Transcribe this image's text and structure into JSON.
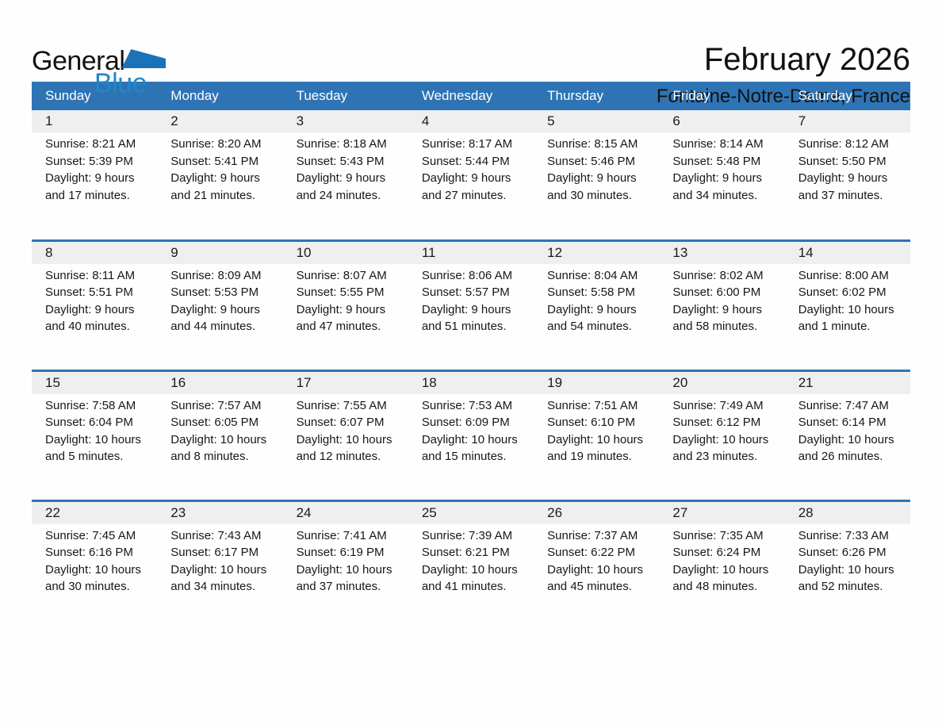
{
  "logo": {
    "part1": "General",
    "part2": "Blue"
  },
  "header": {
    "month_title": "February 2026",
    "location": "Fontaine-Notre-Dame, France"
  },
  "colors": {
    "header_bg": "#2E74B5",
    "week_divider": "#2E74B5",
    "day_band_bg": "#EFEFEF",
    "logo_blue": "#1F87C9",
    "logo_triangle": "#1A72B8",
    "header_text": "#FFFFFF",
    "body_text": "#171717"
  },
  "calendar": {
    "day_names": [
      "Sunday",
      "Monday",
      "Tuesday",
      "Wednesday",
      "Thursday",
      "Friday",
      "Saturday"
    ],
    "weeks": [
      [
        {
          "day": "1",
          "sunrise": "Sunrise: 8:21 AM",
          "sunset": "Sunset: 5:39 PM",
          "daylight": "Daylight: 9 hours and 17 minutes."
        },
        {
          "day": "2",
          "sunrise": "Sunrise: 8:20 AM",
          "sunset": "Sunset: 5:41 PM",
          "daylight": "Daylight: 9 hours and 21 minutes."
        },
        {
          "day": "3",
          "sunrise": "Sunrise: 8:18 AM",
          "sunset": "Sunset: 5:43 PM",
          "daylight": "Daylight: 9 hours and 24 minutes."
        },
        {
          "day": "4",
          "sunrise": "Sunrise: 8:17 AM",
          "sunset": "Sunset: 5:44 PM",
          "daylight": "Daylight: 9 hours and 27 minutes."
        },
        {
          "day": "5",
          "sunrise": "Sunrise: 8:15 AM",
          "sunset": "Sunset: 5:46 PM",
          "daylight": "Daylight: 9 hours and 30 minutes."
        },
        {
          "day": "6",
          "sunrise": "Sunrise: 8:14 AM",
          "sunset": "Sunset: 5:48 PM",
          "daylight": "Daylight: 9 hours and 34 minutes."
        },
        {
          "day": "7",
          "sunrise": "Sunrise: 8:12 AM",
          "sunset": "Sunset: 5:50 PM",
          "daylight": "Daylight: 9 hours and 37 minutes."
        }
      ],
      [
        {
          "day": "8",
          "sunrise": "Sunrise: 8:11 AM",
          "sunset": "Sunset: 5:51 PM",
          "daylight": "Daylight: 9 hours and 40 minutes."
        },
        {
          "day": "9",
          "sunrise": "Sunrise: 8:09 AM",
          "sunset": "Sunset: 5:53 PM",
          "daylight": "Daylight: 9 hours and 44 minutes."
        },
        {
          "day": "10",
          "sunrise": "Sunrise: 8:07 AM",
          "sunset": "Sunset: 5:55 PM",
          "daylight": "Daylight: 9 hours and 47 minutes."
        },
        {
          "day": "11",
          "sunrise": "Sunrise: 8:06 AM",
          "sunset": "Sunset: 5:57 PM",
          "daylight": "Daylight: 9 hours and 51 minutes."
        },
        {
          "day": "12",
          "sunrise": "Sunrise: 8:04 AM",
          "sunset": "Sunset: 5:58 PM",
          "daylight": "Daylight: 9 hours and 54 minutes."
        },
        {
          "day": "13",
          "sunrise": "Sunrise: 8:02 AM",
          "sunset": "Sunset: 6:00 PM",
          "daylight": "Daylight: 9 hours and 58 minutes."
        },
        {
          "day": "14",
          "sunrise": "Sunrise: 8:00 AM",
          "sunset": "Sunset: 6:02 PM",
          "daylight": "Daylight: 10 hours and 1 minute."
        }
      ],
      [
        {
          "day": "15",
          "sunrise": "Sunrise: 7:58 AM",
          "sunset": "Sunset: 6:04 PM",
          "daylight": "Daylight: 10 hours and 5 minutes."
        },
        {
          "day": "16",
          "sunrise": "Sunrise: 7:57 AM",
          "sunset": "Sunset: 6:05 PM",
          "daylight": "Daylight: 10 hours and 8 minutes."
        },
        {
          "day": "17",
          "sunrise": "Sunrise: 7:55 AM",
          "sunset": "Sunset: 6:07 PM",
          "daylight": "Daylight: 10 hours and 12 minutes."
        },
        {
          "day": "18",
          "sunrise": "Sunrise: 7:53 AM",
          "sunset": "Sunset: 6:09 PM",
          "daylight": "Daylight: 10 hours and 15 minutes."
        },
        {
          "day": "19",
          "sunrise": "Sunrise: 7:51 AM",
          "sunset": "Sunset: 6:10 PM",
          "daylight": "Daylight: 10 hours and 19 minutes."
        },
        {
          "day": "20",
          "sunrise": "Sunrise: 7:49 AM",
          "sunset": "Sunset: 6:12 PM",
          "daylight": "Daylight: 10 hours and 23 minutes."
        },
        {
          "day": "21",
          "sunrise": "Sunrise: 7:47 AM",
          "sunset": "Sunset: 6:14 PM",
          "daylight": "Daylight: 10 hours and 26 minutes."
        }
      ],
      [
        {
          "day": "22",
          "sunrise": "Sunrise: 7:45 AM",
          "sunset": "Sunset: 6:16 PM",
          "daylight": "Daylight: 10 hours and 30 minutes."
        },
        {
          "day": "23",
          "sunrise": "Sunrise: 7:43 AM",
          "sunset": "Sunset: 6:17 PM",
          "daylight": "Daylight: 10 hours and 34 minutes."
        },
        {
          "day": "24",
          "sunrise": "Sunrise: 7:41 AM",
          "sunset": "Sunset: 6:19 PM",
          "daylight": "Daylight: 10 hours and 37 minutes."
        },
        {
          "day": "25",
          "sunrise": "Sunrise: 7:39 AM",
          "sunset": "Sunset: 6:21 PM",
          "daylight": "Daylight: 10 hours and 41 minutes."
        },
        {
          "day": "26",
          "sunrise": "Sunrise: 7:37 AM",
          "sunset": "Sunset: 6:22 PM",
          "daylight": "Daylight: 10 hours and 45 minutes."
        },
        {
          "day": "27",
          "sunrise": "Sunrise: 7:35 AM",
          "sunset": "Sunset: 6:24 PM",
          "daylight": "Daylight: 10 hours and 48 minutes."
        },
        {
          "day": "28",
          "sunrise": "Sunrise: 7:33 AM",
          "sunset": "Sunset: 6:26 PM",
          "daylight": "Daylight: 10 hours and 52 minutes."
        }
      ]
    ]
  }
}
